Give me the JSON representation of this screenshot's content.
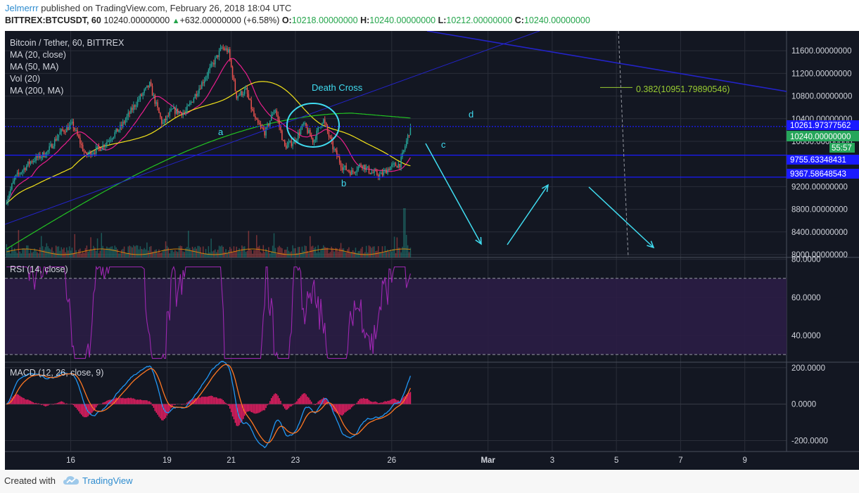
{
  "header": {
    "user": "Jelmerrr",
    "published_text": "published on TradingView.com, February 26, 2018 18:04 UTC",
    "symbol": "BITTREX:BTCUSDT, 60",
    "last": "10240.00000000",
    "change": "+632.00000000 (+6.58%)",
    "o_label": "O:",
    "o_value": "10218.00000000",
    "h_label": "H:",
    "h_value": "10240.00000000",
    "l_label": "L:",
    "l_value": "10212.00000000",
    "c_label": "C:",
    "c_value": "10240.00000000"
  },
  "legend": {
    "title": "Bitcoin / Tether, 60, BITTREX",
    "items": [
      "MA (20, close)",
      "MA (50, MA)",
      "Vol (20)",
      "MA (200, MA)"
    ]
  },
  "annotations": {
    "death_cross": "Death Cross",
    "fib": "0.382(10951.79890546)",
    "wave_a": "a",
    "wave_b": "b",
    "wave_c": "c",
    "wave_d": "d"
  },
  "price_tags": {
    "line1": "10261.97377562",
    "last": "10240.00000000",
    "countdown": "55:57",
    "line2": "9755.63348431",
    "line3": "9367.58648543"
  },
  "rsi": {
    "label": "RSI (14, close)",
    "ticks": [
      "80.0000",
      "60.0000",
      "40.0000"
    ]
  },
  "macd": {
    "label": "MACD (12, 26, close, 9)",
    "ticks": [
      "200.0000",
      "0.0000",
      "-200.0000"
    ]
  },
  "footer": {
    "created": "Created with",
    "brand": "TradingView"
  },
  "colors": {
    "bg": "#131722",
    "up": "#26a69a",
    "down": "#ef5350",
    "ma20": "#e91e8c",
    "ma50": "#f2e21a",
    "ma200": "#22c322",
    "hline": "#1a1aff",
    "trend": "#2323c8",
    "annot": "#40dcf0",
    "rsi": "#9c27b0",
    "macd": "#2196f3",
    "signal": "#ff7722",
    "hist": "#e91e63",
    "fib": "#9acd32"
  },
  "chart_data": {
    "type": "candlestick",
    "symbol": "BTCUSDT",
    "interval": "60",
    "x_ticks": [
      "16",
      "19",
      "21",
      "23",
      "26",
      "Mar",
      "3",
      "5",
      "7",
      "9"
    ],
    "price_axis": {
      "ticks": [
        8000,
        8400,
        8800,
        9200,
        10000,
        10400,
        10800,
        11200,
        11600
      ],
      "tick_labels": [
        "8000.00000000",
        "8400.00000000",
        "8800.00000000",
        "9200.00000000",
        "10000.00000000",
        "10400.00000000",
        "10800.00000000",
        "11200.00000000",
        "11600.00000000"
      ],
      "ylim": [
        7950,
        11950
      ]
    },
    "rsi_ylim": [
      26,
      81
    ],
    "macd_ylim": [
      -260,
      230
    ],
    "horizontal_levels": [
      10261.97377562,
      9755.63348431,
      9367.58648543
    ],
    "fib_level": 10951.79890546,
    "price_anchors": [
      [
        14,
        8900
      ],
      [
        14.3,
        9350
      ],
      [
        14.8,
        9650
      ],
      [
        15.3,
        9800
      ],
      [
        15.7,
        10150
      ],
      [
        16.1,
        10300
      ],
      [
        16.5,
        9750
      ],
      [
        17,
        9900
      ],
      [
        17.6,
        10250
      ],
      [
        18.1,
        10700
      ],
      [
        18.5,
        11000
      ],
      [
        18.9,
        10300
      ],
      [
        19.2,
        10550
      ],
      [
        19.6,
        10500
      ],
      [
        20,
        10900
      ],
      [
        20.4,
        11300
      ],
      [
        20.75,
        11650
      ],
      [
        20.95,
        11600
      ],
      [
        21.2,
        10800
      ],
      [
        21.5,
        10900
      ],
      [
        21.8,
        10350
      ],
      [
        22.1,
        10150
      ],
      [
        22.4,
        10600
      ],
      [
        22.7,
        9900
      ],
      [
        23,
        10000
      ],
      [
        23.3,
        10300
      ],
      [
        23.6,
        10000
      ],
      [
        23.9,
        10400
      ],
      [
        24.2,
        9900
      ],
      [
        24.5,
        9550
      ],
      [
        24.8,
        9450
      ],
      [
        25.1,
        9600
      ],
      [
        25.4,
        9450
      ],
      [
        25.7,
        9400
      ],
      [
        26,
        9550
      ],
      [
        26.3,
        9600
      ],
      [
        26.5,
        10000
      ],
      [
        26.62,
        10240
      ]
    ],
    "volume_spike_at": 26.4
  }
}
